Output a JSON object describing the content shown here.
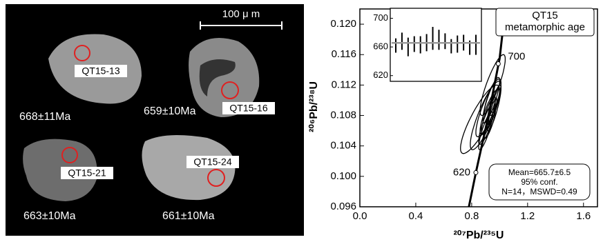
{
  "image_panel": {
    "scale_bar": "100 μ m",
    "grains": [
      {
        "spot": "QT15-13",
        "age": "668±11Ma"
      },
      {
        "spot": "QT15-16",
        "age": "659±10Ma"
      },
      {
        "spot": "QT15-21",
        "age": "663±10Ma"
      },
      {
        "spot": "QT15-24",
        "age": "661±10Ma"
      }
    ]
  },
  "chart_data": {
    "type": "concordia",
    "x_label": "²⁰⁷Pb/²³⁵U",
    "y_label": "²⁰⁶Pb/²³⁸U",
    "xlim": [
      0,
      1.7
    ],
    "xticks": [
      {
        "value": 0,
        "label": "0.0"
      },
      0.4,
      0.8,
      1.2,
      1.6
    ],
    "ylim": [
      0.096,
      0.122
    ],
    "yticks": [
      0.096,
      {
        "value": 0.1,
        "label": "0.100"
      },
      0.104,
      0.108,
      0.112,
      0.116,
      {
        "value": 0.12,
        "label": "0.120"
      }
    ],
    "ellipses": {
      "x": [
        0.86,
        0.9,
        0.92,
        0.95,
        0.93,
        0.91,
        0.94,
        0.92,
        0.96,
        0.9,
        0.93,
        0.97,
        0.95,
        0.92
      ],
      "y": [
        0.1075,
        0.108,
        0.109,
        0.112,
        0.1085,
        0.107,
        0.11,
        0.108,
        0.109,
        0.106,
        0.107,
        0.11,
        0.1085,
        0.1095
      ],
      "x_err": [
        0.14,
        0.11,
        0.09,
        0.09,
        0.07,
        0.06,
        0.06,
        0.05,
        0.05,
        0.05,
        0.04,
        0.04,
        0.03,
        0.04
      ],
      "y_err": [
        0.0045,
        0.0045,
        0.0038,
        0.004,
        0.003,
        0.0028,
        0.003,
        0.0025,
        0.003,
        0.0025,
        0.002,
        0.002,
        0.0018,
        0.0025
      ],
      "color": "#000000"
    },
    "error_correlation": 0.85,
    "concordia": {
      "x": [
        0.78,
        0.83,
        0.92,
        1.0,
        1.04
      ],
      "y": [
        0.096,
        0.1005,
        0.108,
        0.1155,
        0.122
      ],
      "color": "#000000"
    },
    "age_marks": {
      "x": [
        0.83,
        0.99
      ],
      "y": [
        0.1005,
        0.1148
      ],
      "ages": [
        620,
        700
      ]
    },
    "annotation": [
      "QT15",
      "metamorphic age"
    ],
    "stats": [
      "Mean=665.7±6.5",
      "95% conf.",
      "N=14，MSWD=0.49"
    ],
    "inset": {
      "type": "weighted-mean",
      "ylim": [
        612,
        714
      ],
      "yticks": [
        620,
        660,
        700
      ],
      "values": [
        662,
        668,
        660,
        664,
        663,
        666,
        672,
        670,
        668,
        661,
        664,
        666,
        659,
        663
      ],
      "errors": [
        10,
        12,
        13,
        11,
        12,
        12,
        16,
        14,
        11,
        10,
        12,
        11,
        10,
        14
      ],
      "mean": 665.7,
      "mean_color": "#999999"
    }
  }
}
